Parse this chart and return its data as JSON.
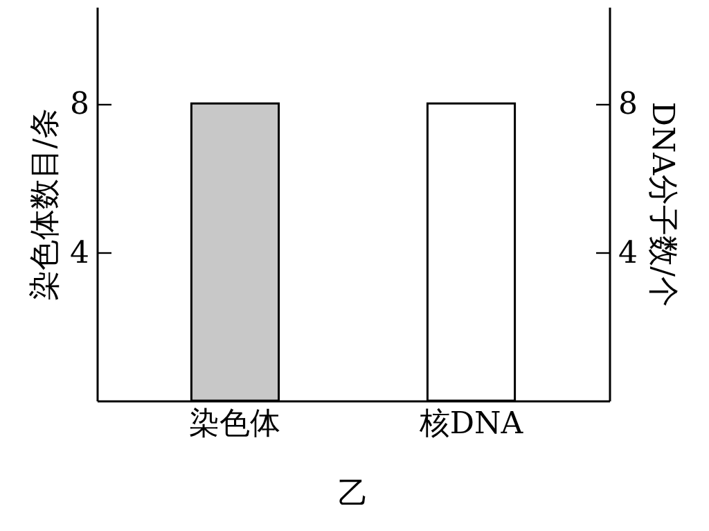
{
  "chart_data": {
    "type": "bar",
    "title": "乙",
    "ylabel": "染色体数目/条",
    "y2label": "DNA分子数/个",
    "categories": [
      "染色体",
      "核DNA"
    ],
    "series": [
      {
        "color": "#c8c8c8",
        "values": [
          8,
          null
        ]
      },
      {
        "color": "#ffffff",
        "values": [
          null,
          8
        ],
        "axis": "y2"
      }
    ],
    "ylim": [
      0,
      10.6
    ],
    "yticks": [
      4,
      8
    ],
    "y2lim": [
      0,
      10.6
    ],
    "y2ticks": [
      4,
      8
    ],
    "grid": false
  }
}
